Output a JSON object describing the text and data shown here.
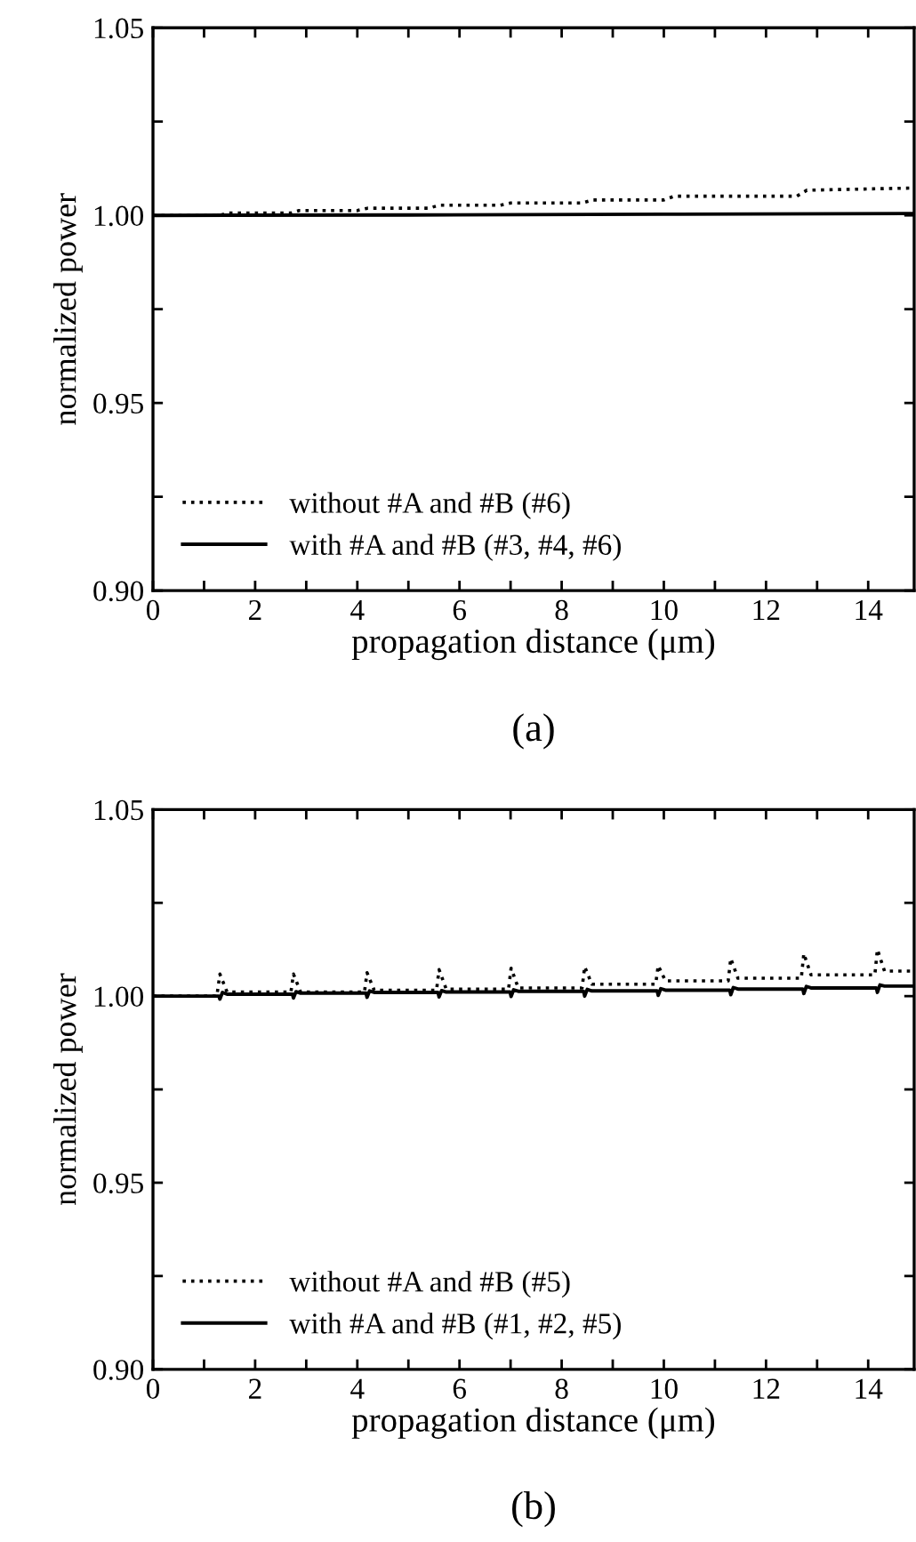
{
  "chart_data": [
    {
      "type": "line",
      "xlabel": "propagation distance (μm)",
      "ylabel": "normalized power",
      "annotations": [
        "(a)"
      ],
      "xlim": [
        0,
        14.9
      ],
      "ylim": [
        0.9,
        1.05
      ],
      "xticks": [
        0,
        {
          "value": 1,
          "label": null
        },
        2,
        {
          "value": 3,
          "label": null
        },
        4,
        {
          "value": 5,
          "label": null
        },
        6,
        {
          "value": 7,
          "label": null
        },
        8,
        {
          "value": 9,
          "label": null
        },
        10,
        {
          "value": 11,
          "label": null
        },
        12,
        {
          "value": 13,
          "label": null
        },
        14
      ],
      "yticks": [
        {
          "value": 0.9,
          "label": "0.90"
        },
        {
          "value": 0.925,
          "label": null
        },
        {
          "value": 0.95,
          "label": "0.95"
        },
        {
          "value": 0.975,
          "label": null
        },
        {
          "value": 1.0,
          "label": "1.00"
        },
        {
          "value": 1.025,
          "label": null
        },
        {
          "value": 1.05,
          "label": "1.05"
        }
      ],
      "grid": false,
      "legend": "bottom left",
      "series": [
        {
          "name": "without #A and #B (#6)",
          "color": "#000000",
          "line_style": "dotted",
          "x": [
            0,
            1.3,
            1.48,
            2.7,
            2.86,
            4.0,
            4.2,
            5.4,
            5.6,
            6.8,
            7.0,
            8.4,
            8.6,
            10.0,
            10.2,
            12.6,
            12.8,
            14.9
          ],
          "values": [
            1.0,
            1.0,
            1.0006,
            1.0006,
            1.0013,
            1.0013,
            1.0019,
            1.0019,
            1.0027,
            1.0027,
            1.0033,
            1.0033,
            1.0041,
            1.0041,
            1.0051,
            1.0051,
            1.0067,
            1.0073
          ]
        },
        {
          "name": "with #A and #B (#3, #4, #6)",
          "color": "#000000",
          "line_style": "solid",
          "x": [
            0,
            5,
            10,
            14.9
          ],
          "values": [
            1.0,
            1.0001,
            1.0003,
            1.0005
          ]
        }
      ]
    },
    {
      "type": "line",
      "xlabel": "propagation distance (μm)",
      "ylabel": "normalized power",
      "annotations": [
        "(b)"
      ],
      "xlim": [
        0,
        14.9
      ],
      "ylim": [
        0.9,
        1.05
      ],
      "xticks": [
        0,
        {
          "value": 1,
          "label": null
        },
        2,
        {
          "value": 3,
          "label": null
        },
        4,
        {
          "value": 5,
          "label": null
        },
        6,
        {
          "value": 7,
          "label": null
        },
        8,
        {
          "value": 9,
          "label": null
        },
        10,
        {
          "value": 11,
          "label": null
        },
        12,
        {
          "value": 13,
          "label": null
        },
        14
      ],
      "yticks": [
        {
          "value": 0.9,
          "label": "0.90"
        },
        {
          "value": 0.925,
          "label": null
        },
        {
          "value": 0.95,
          "label": "0.95"
        },
        {
          "value": 0.975,
          "label": null
        },
        {
          "value": 1.0,
          "label": "1.00"
        },
        {
          "value": 1.025,
          "label": null
        },
        {
          "value": 1.05,
          "label": "1.05"
        }
      ],
      "grid": false,
      "legend": "bottom left",
      "series": [
        {
          "name": "without #A and #B (#5)",
          "color": "#000000",
          "line_style": "dotted",
          "x": [
            0,
            1.25,
            1.31,
            1.45,
            2.7,
            2.75,
            2.89,
            4.14,
            4.19,
            4.33,
            5.55,
            5.6,
            5.74,
            6.96,
            7.01,
            7.15,
            8.4,
            8.45,
            8.59,
            9.84,
            9.89,
            10.03,
            11.26,
            11.31,
            11.45,
            12.69,
            12.74,
            12.88,
            14.13,
            14.18,
            14.32,
            14.9
          ],
          "values": [
            1.0,
            1.0,
            1.0059,
            1.0011,
            1.0011,
            1.0059,
            1.0011,
            1.0011,
            1.0063,
            1.0016,
            1.0016,
            1.0071,
            1.0019,
            1.0019,
            1.0075,
            1.0022,
            1.0022,
            1.0079,
            1.0032,
            1.0032,
            1.0082,
            1.0041,
            1.0041,
            1.0101,
            1.0048,
            1.0048,
            1.0114,
            1.0057,
            1.0057,
            1.0125,
            1.0067,
            1.0067
          ]
        },
        {
          "name": "with #A and #B (#1, #2, #5)",
          "color": "#000000",
          "line_style": "solid",
          "x": [
            0,
            1.29,
            1.31,
            1.36,
            1.45,
            2.73,
            2.75,
            2.8,
            2.89,
            4.17,
            4.19,
            4.24,
            4.33,
            5.58,
            5.6,
            5.65,
            5.74,
            6.99,
            7.01,
            7.06,
            7.15,
            8.43,
            8.45,
            8.5,
            8.59,
            9.87,
            9.89,
            9.94,
            10.03,
            11.29,
            11.31,
            11.36,
            11.45,
            12.72,
            12.74,
            12.79,
            12.88,
            14.16,
            14.18,
            14.23,
            14.32,
            14.9
          ],
          "values": [
            1.0,
            1.0,
            0.9992,
            1.001,
            1.0005,
            1.0005,
            0.9995,
            1.0012,
            1.0008,
            1.0008,
            0.9997,
            1.0014,
            1.001,
            1.001,
            0.9998,
            1.0015,
            1.0011,
            1.0011,
            0.9999,
            1.0017,
            1.0013,
            1.0013,
            1.0,
            1.0018,
            1.0014,
            1.0014,
            1.0002,
            1.002,
            1.0016,
            1.0016,
            1.0004,
            1.0023,
            1.0019,
            1.0019,
            1.0007,
            1.0026,
            1.0022,
            1.0022,
            1.001,
            1.003,
            1.0027,
            1.0027
          ]
        }
      ]
    }
  ]
}
